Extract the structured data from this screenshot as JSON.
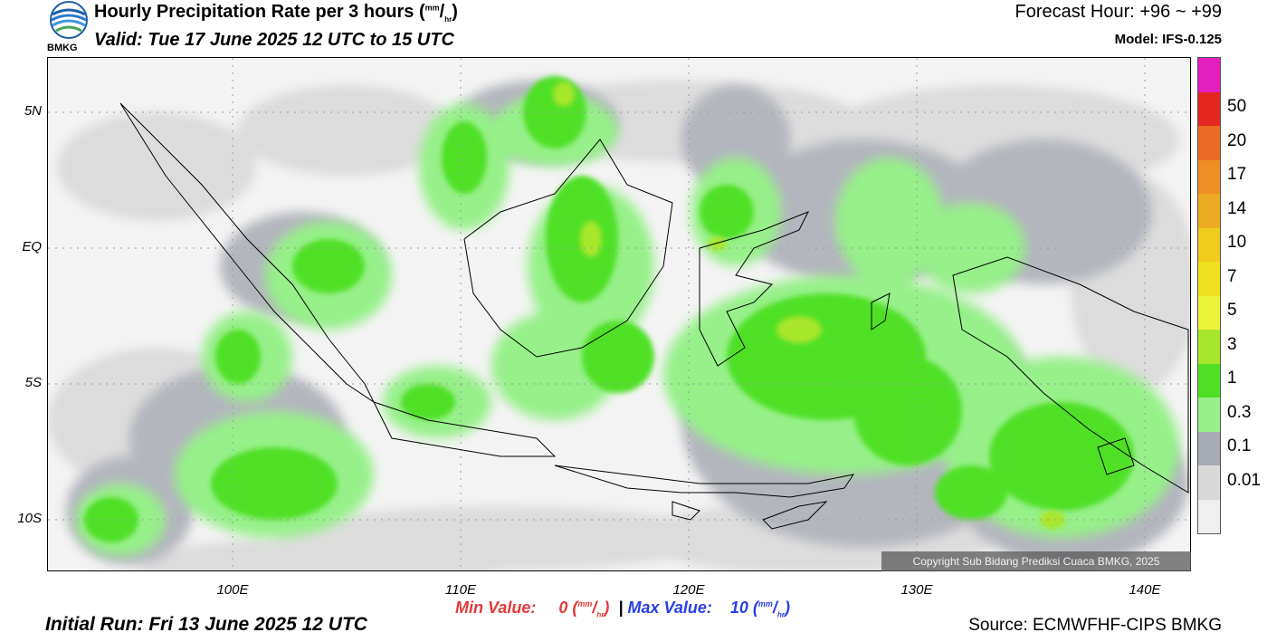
{
  "header": {
    "title_main": "Hourly Precipitation Rate per 3 hours (",
    "title_unit_num": "mm",
    "title_unit_den": "hr",
    "title_end": ")",
    "valid": "Valid: Tue 17 June 2025 12 UTC to 15 UTC",
    "forecast_hour": "Forecast Hour: +96 ~ +99",
    "model": "Model: IFS-0.125"
  },
  "logo": {
    "text": "BMKG",
    "icon": "bmkg-logo"
  },
  "map": {
    "lat_labels": [
      "5N",
      "EQ",
      "5S",
      "10S"
    ],
    "lon_labels": [
      "100E",
      "110E",
      "120E",
      "130E",
      "140E"
    ],
    "grid": true,
    "copyright": "Copyright Sub Bidang Prediksi Cuaca BMKG, 2025"
  },
  "colorbar": {
    "labels": [
      "50",
      "20",
      "17",
      "14",
      "10",
      "7",
      "5",
      "3",
      "1",
      "0.3",
      "0.1",
      "0.01"
    ],
    "colors": [
      "#e41fc0",
      "#e3261f",
      "#ea6b24",
      "#ef8e24",
      "#ecab22",
      "#efcb1e",
      "#efe01f",
      "#ecf23a",
      "#a8e62b",
      "#4fe025",
      "#97f08a",
      "#a8acb5",
      "#d9d9d9",
      "#efefef"
    ]
  },
  "footer": {
    "min_label": "Min Value:",
    "min_value": "0",
    "max_label": "Max Value:",
    "max_value": "10",
    "unit_num": "mm",
    "unit_den": "hr",
    "separator": "|",
    "initial_run": "Initial Run: Fri 13 June 2025 12 UTC",
    "source": "Source: ECMWFHF-CIPS BMKG"
  }
}
